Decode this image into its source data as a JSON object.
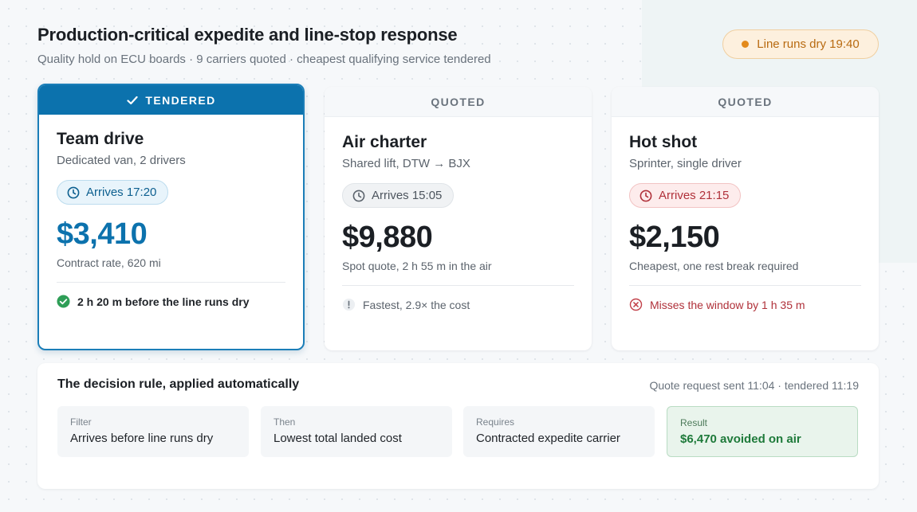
{
  "header": {
    "title": "Production-critical expedite and line-stop response",
    "subtitle": "Quality hold on ECU boards · 9 carriers quoted · cheapest qualifying service tendered",
    "deadline": "Line runs dry 19:40"
  },
  "cards": [
    {
      "status": "TENDERED",
      "status_icon": "check-icon",
      "title": "Team drive",
      "subtitle": "Dedicated van, 2 drivers",
      "eta": "Arrives 17:20",
      "price": "$3,410",
      "price_note": "Contract rate, 620 mi",
      "outcome": "2 h 20 m before the line runs dry",
      "outcome_icon": "check-circle-icon"
    },
    {
      "status": "QUOTED",
      "title": "Air charter",
      "subtitle": "Shared lift, DTW → BJX",
      "eta": "Arrives 15:05",
      "price": "$9,880",
      "price_note": "Spot quote, 2 h 55 m in the air",
      "outcome": "Fastest, 2.9× the cost",
      "outcome_icon": "exclamation-circle-icon"
    },
    {
      "status": "QUOTED",
      "title": "Hot shot",
      "subtitle": "Sprinter, single driver",
      "eta": "Arrives 21:15",
      "price": "$2,150",
      "price_note": "Cheapest, one rest break required",
      "outcome": "Misses the window by 1 h 35 m",
      "outcome_icon": "x-circle-icon"
    }
  ],
  "rule": {
    "title": "The decision rule, applied automatically",
    "meta": "Quote request sent 11:04 · tendered 11:19",
    "steps": [
      {
        "key": "Filter",
        "value": "Arrives before line runs dry"
      },
      {
        "key": "Then",
        "value": "Lowest total landed cost"
      },
      {
        "key": "Requires",
        "value": "Contracted expedite carrier"
      },
      {
        "key": "Result",
        "value": "$6,470 avoided on air"
      }
    ]
  },
  "colors": {
    "accent": "#0c72ad",
    "warning": "#e38a1c",
    "danger": "#b0313a",
    "success": "#1e7a3a"
  }
}
